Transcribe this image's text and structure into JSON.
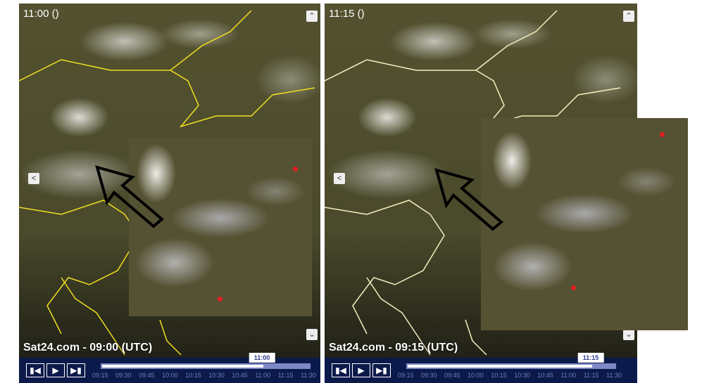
{
  "panels": [
    {
      "time_label": "11:00 ()",
      "brand": "Sat24.com - 09:00 (UTC)",
      "current": "11:00",
      "progress": 0.78
    },
    {
      "time_label": "11:15 ()",
      "brand": "Sat24.com - 09:15 (UTC)",
      "current": "11:15",
      "progress": 0.89
    }
  ],
  "timeline": [
    "09:15",
    "09:30",
    "09:45",
    "10:00",
    "10:15",
    "10:30",
    "10:45",
    "11:00",
    "11:15",
    "11:30"
  ],
  "icons": {
    "up": "chevron-up-icon",
    "down": "chevron-down-icon",
    "left": "chevron-left-icon",
    "first": "skip-back-icon",
    "play": "play-icon",
    "last": "skip-forward-icon"
  },
  "colors": {
    "border": "#f0e020",
    "controls": "#0b1a4a",
    "track": "#7f88c6"
  }
}
